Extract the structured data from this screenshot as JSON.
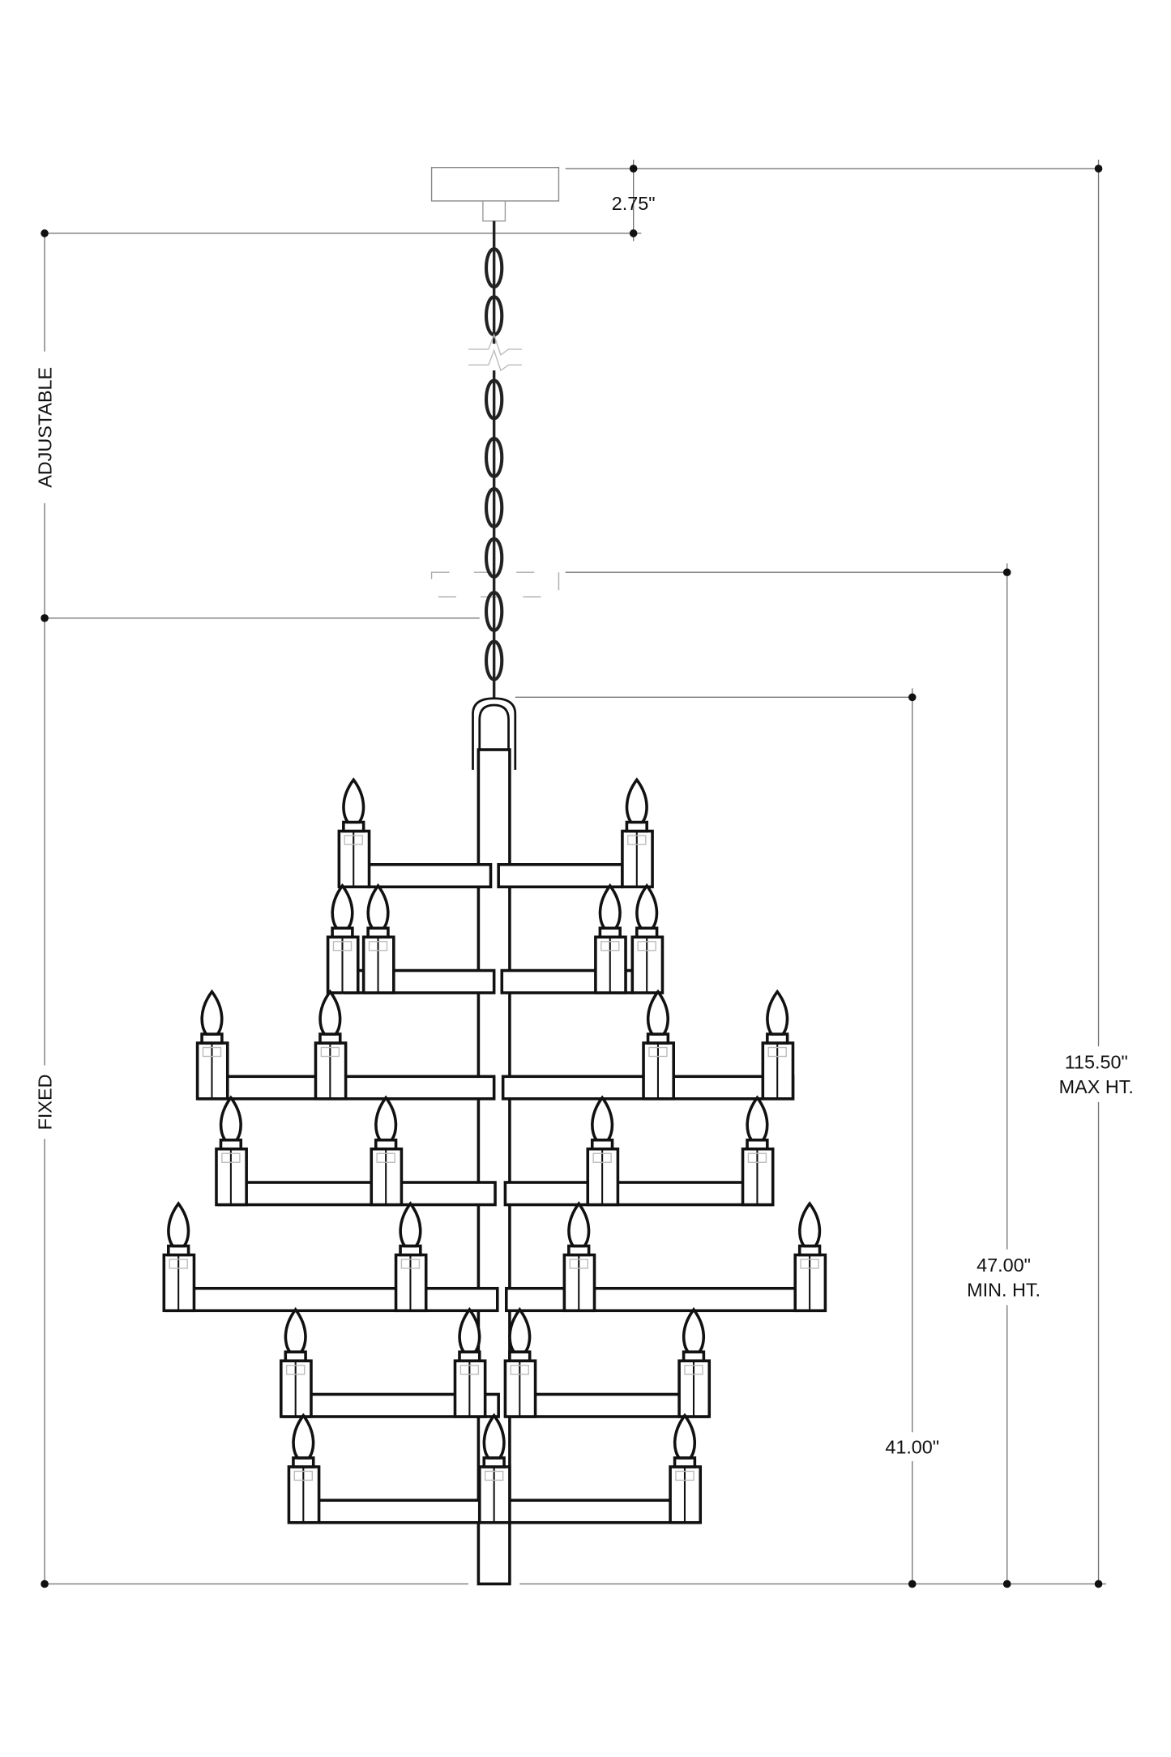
{
  "dimensions": {
    "canopy_height": "2.75\"",
    "adjustable_label": "ADJUSTABLE",
    "fixed_label": "FIXED",
    "max_height_value": "115.50\"",
    "max_height_label": "MAX HT.",
    "min_height_value": "47.00\"",
    "min_height_label": "MIN. HT.",
    "fixture_height": "41.00\""
  },
  "fixture": {
    "tiers": 7,
    "lights_per_tier": [
      2,
      4,
      4,
      4,
      4,
      4,
      3
    ]
  }
}
